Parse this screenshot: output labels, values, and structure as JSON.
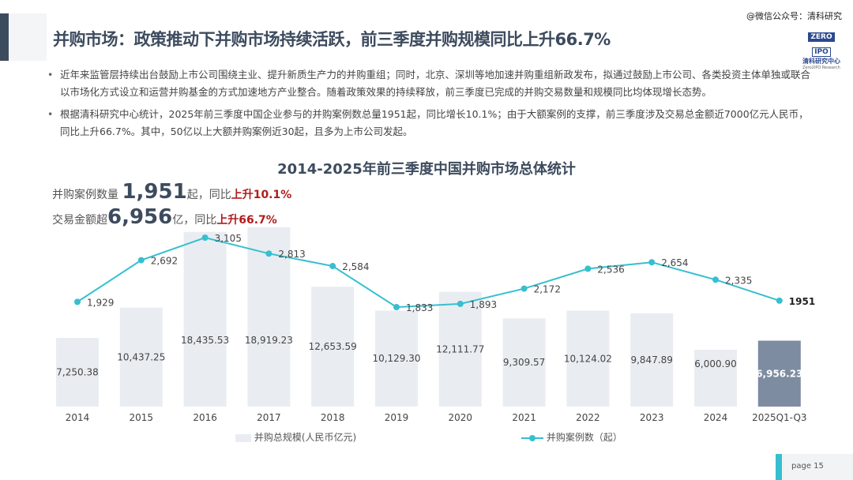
{
  "header": {
    "title": "并购市场：政策推动下并购市场持续活跃，前三季度并购规模同比上升66.7%",
    "wechat": "@微信公众号：清科研究"
  },
  "logo": {
    "top": "ZERO",
    "mid": "2",
    "right": "IPO",
    "cn": "清科研究中心",
    "en": "Zero2IPO Research"
  },
  "bullets": [
    "近年来监管层持续出台鼓励上市公司围绕主业、提升新质生产力的并购重组；同时，北京、深圳等地加速并购重组新政发布，拟通过鼓励上市公司、各类投资主体单独或联合以市场化方式设立和运营并购基金的方式加速地方产业整合。随着政策效果的持续释放，前三季度已完成的并购交易数量和规模同比均体现增长态势。",
    "根据清科研究中心统计，2025年前三季度中国企业参与的并购案例数总量1951起，同比增长10.1%；由于大额案例的支撑，前三季度涉及交易总金额近7000亿元人民币，同比上升66.7%。其中，50亿以上大额并购案例近30起，且多为上市公司发起。"
  ],
  "stats": {
    "cases_label": "并购案例数量",
    "cases_value": "1,951",
    "cases_unit": "起，同比",
    "cases_change": "上升10.1%",
    "amount_label": "交易金额超",
    "amount_value": "6,956",
    "amount_unit": "亿，同比",
    "amount_change": "上升66.7%"
  },
  "chart_data": {
    "type": "bar+line",
    "title": "2014-2025年前三季度中国并购市场总体统计",
    "categories": [
      "2014",
      "2015",
      "2016",
      "2017",
      "2018",
      "2019",
      "2020",
      "2021",
      "2022",
      "2023",
      "2024",
      "2025Q1-Q3"
    ],
    "series": [
      {
        "name": "并购总规模(人民币亿元)",
        "type": "bar",
        "values": [
          7250.38,
          10437.25,
          18435.53,
          18919.23,
          12653.59,
          10129.3,
          12111.77,
          9309.57,
          10124.02,
          9847.89,
          6000.9,
          6956.23
        ],
        "labels": [
          "7,250.38",
          "10,437.25",
          "18,435.53",
          "18,919.23",
          "12,653.59",
          "10,129.30",
          "12,111.77",
          "9,309.57",
          "10,124.02",
          "9,847.89",
          "6,000.90",
          "6,956.23"
        ],
        "color": "#e9edf1",
        "highlight_color": "#7d8ca1"
      },
      {
        "name": "并购案例数（起）",
        "type": "line",
        "values": [
          1929,
          2692,
          3105,
          2813,
          2584,
          1833,
          1893,
          2172,
          2536,
          2654,
          2335,
          1951
        ],
        "labels": [
          "1,929",
          "2,692",
          "3,105",
          "2,813",
          "2,584",
          "1,833",
          "1,893",
          "2,172",
          "2,536",
          "2,654",
          "2,335",
          "1951"
        ],
        "color": "#36bfcf"
      }
    ],
    "legend": "bottom"
  },
  "footer": {
    "page": "page  15"
  }
}
